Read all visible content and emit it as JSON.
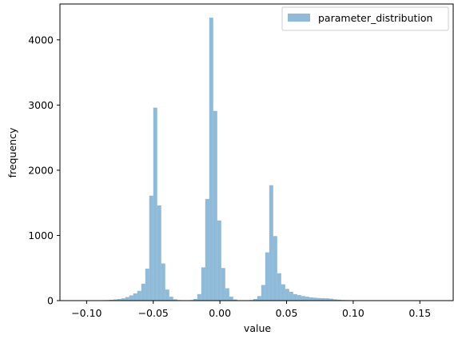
{
  "chart_data": {
    "type": "bar",
    "title": "",
    "xlabel": "value",
    "ylabel": "frequency",
    "xlim": [
      -0.12,
      0.175
    ],
    "ylim": [
      0,
      4550
    ],
    "x_ticks": [
      -0.1,
      -0.05,
      0.0,
      0.05,
      0.1,
      0.15
    ],
    "x_tick_labels": [
      "−0.10",
      "−0.05",
      "0.00",
      "0.05",
      "0.10",
      "0.15"
    ],
    "y_ticks": [
      0,
      1000,
      2000,
      3000,
      4000
    ],
    "y_tick_labels": [
      "0",
      "1000",
      "2000",
      "3000",
      "4000"
    ],
    "grid": false,
    "legend": "top-right",
    "bin_width": 0.003,
    "series": [
      {
        "name": "parameter_distribution",
        "color": "#1f77b4",
        "alpha": 0.5,
        "x": [
          -0.0995,
          -0.0965,
          -0.0935,
          -0.0905,
          -0.0875,
          -0.0845,
          -0.0815,
          -0.0785,
          -0.0755,
          -0.0725,
          -0.0695,
          -0.0665,
          -0.0635,
          -0.0605,
          -0.0575,
          -0.0545,
          -0.0515,
          -0.0485,
          -0.0455,
          -0.0425,
          -0.0395,
          -0.0365,
          -0.0335,
          -0.0305,
          -0.0275,
          -0.0245,
          -0.0215,
          -0.0185,
          -0.0155,
          -0.0125,
          -0.0095,
          -0.0065,
          -0.0035,
          -0.0005,
          0.0025,
          0.0055,
          0.0085,
          0.0115,
          0.0145,
          0.0175,
          0.0205,
          0.0235,
          0.0265,
          0.0295,
          0.0325,
          0.0355,
          0.0385,
          0.0415,
          0.0445,
          0.0475,
          0.0505,
          0.0535,
          0.0565,
          0.0595,
          0.0625,
          0.0655,
          0.0685,
          0.0715,
          0.0745,
          0.0775,
          0.0805,
          0.0835,
          0.0865,
          0.0895,
          0.0925,
          0.0955,
          0.0985,
          0.1015,
          0.1045,
          0.1075,
          0.1105,
          0.1135,
          0.1165,
          0.1195,
          0.1225,
          0.1255,
          0.1285,
          0.1315
        ],
        "values": [
          1,
          2,
          2,
          3,
          5,
          8,
          12,
          18,
          25,
          35,
          55,
          80,
          110,
          150,
          260,
          490,
          1610,
          2960,
          1460,
          570,
          170,
          60,
          20,
          8,
          5,
          5,
          8,
          25,
          100,
          510,
          1560,
          4340,
          2910,
          1230,
          500,
          190,
          60,
          18,
          6,
          4,
          4,
          8,
          25,
          70,
          240,
          740,
          1770,
          990,
          420,
          250,
          180,
          135,
          100,
          85,
          70,
          60,
          50,
          45,
          40,
          38,
          35,
          30,
          20,
          15,
          10,
          8,
          6,
          5,
          4,
          3,
          3,
          2,
          2,
          1,
          1,
          1,
          1,
          1
        ]
      }
    ]
  }
}
